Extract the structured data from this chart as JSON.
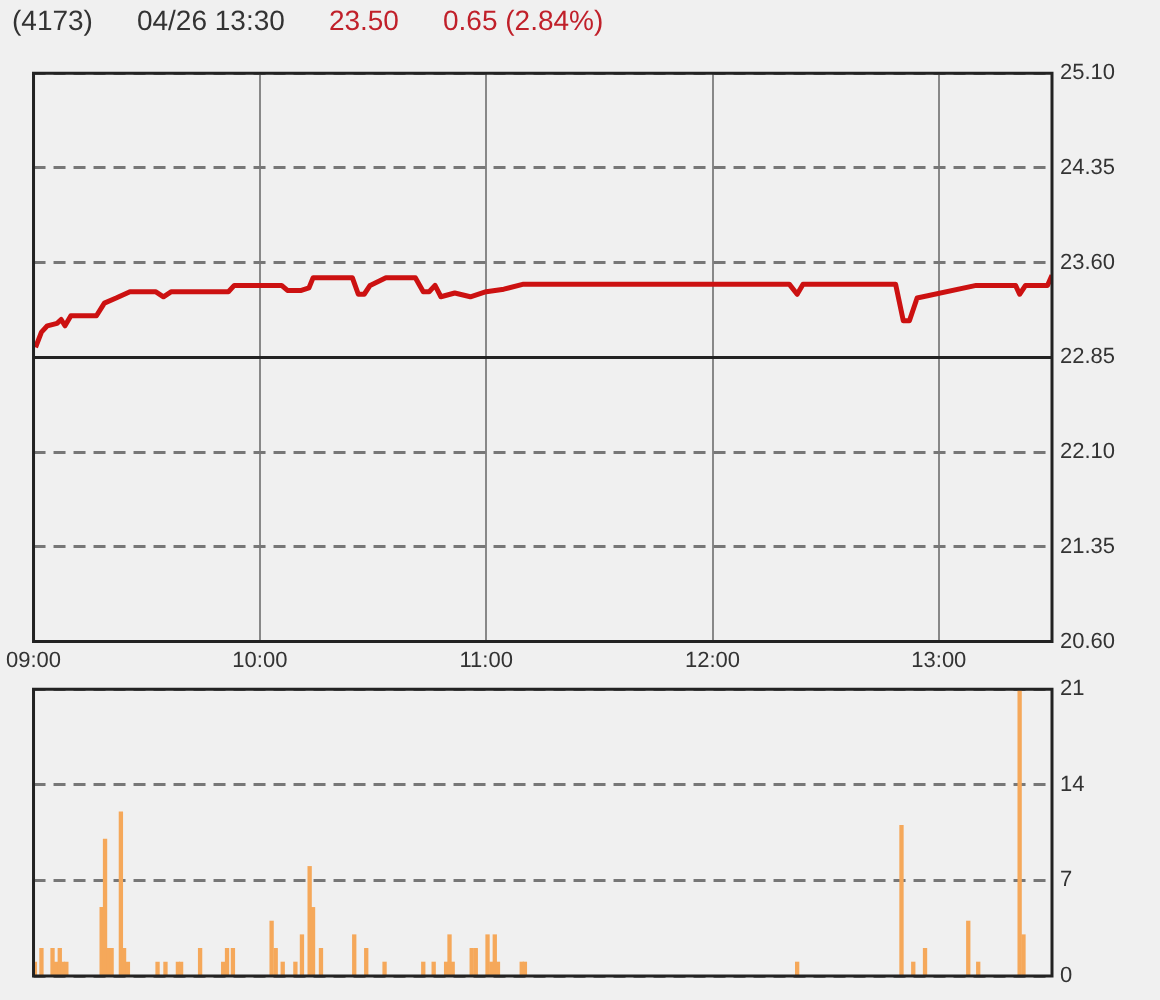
{
  "chart_data": [
    {
      "type": "line",
      "title": "(4173)",
      "subtitle": "04/26 13:30",
      "annotations": [
        "23.50",
        "0.65 (2.84%)"
      ],
      "color": "#cc1111",
      "line_style": "solid",
      "marker": "none",
      "grid": true,
      "legend": false,
      "x": [
        9.009,
        9.035,
        9.061,
        9.104,
        9.122,
        9.139,
        9.165,
        9.278,
        9.313,
        9.365,
        9.426,
        9.539,
        9.574,
        9.609,
        9.861,
        9.887,
        10.096,
        10.122,
        10.183,
        10.217,
        10.235,
        10.409,
        10.435,
        10.461,
        10.487,
        10.557,
        10.687,
        10.722,
        10.748,
        10.774,
        10.8,
        10.861,
        10.93,
        11.0,
        11.078,
        11.165,
        12.339,
        12.374,
        12.4,
        12.809,
        12.843,
        12.87,
        12.904,
        13.165,
        13.339,
        13.357,
        13.383,
        13.48,
        13.5
      ],
      "values": [
        22.93,
        23.05,
        23.1,
        23.12,
        23.15,
        23.1,
        23.18,
        23.18,
        23.28,
        23.32,
        23.37,
        23.37,
        23.33,
        23.37,
        23.37,
        23.42,
        23.42,
        23.38,
        23.38,
        23.4,
        23.48,
        23.48,
        23.35,
        23.35,
        23.42,
        23.48,
        23.48,
        23.37,
        23.37,
        23.42,
        23.33,
        23.36,
        23.33,
        23.37,
        23.39,
        23.43,
        23.43,
        23.35,
        23.43,
        23.43,
        23.14,
        23.14,
        23.32,
        23.42,
        23.42,
        23.35,
        23.42,
        23.42,
        23.5
      ],
      "xlim": [
        9,
        13.5
      ],
      "xticks": [
        {
          "value": 9,
          "label": "09:00"
        },
        {
          "value": 10,
          "label": "10:00"
        },
        {
          "value": 11,
          "label": "11:00"
        },
        {
          "value": 12,
          "label": "12:00"
        },
        {
          "value": 13,
          "label": "13:00"
        }
      ],
      "ylim": [
        20.6,
        25.1
      ],
      "yticks": [
        {
          "value": 20.6,
          "label": "20.60"
        },
        {
          "value": 21.35,
          "label": "21.35"
        },
        {
          "value": 22.1,
          "label": "22.10"
        },
        {
          "value": 22.85,
          "label": "22.85"
        },
        {
          "value": 23.6,
          "label": "23.60"
        },
        {
          "value": 24.35,
          "label": "24.35"
        },
        {
          "value": 25.1,
          "label": "25.10"
        }
      ],
      "ref_lines": [
        {
          "axis": "y",
          "value": 22.85,
          "color": "#222222",
          "line_style": "solid"
        }
      ]
    },
    {
      "type": "bar",
      "color": "#f5a85a",
      "grid": "y",
      "legend": false,
      "tick_labels": "y",
      "x": [
        9.006,
        9.035,
        9.084,
        9.099,
        9.116,
        9.13,
        9.145,
        9.301,
        9.316,
        9.33,
        9.345,
        9.386,
        9.4,
        9.417,
        9.548,
        9.583,
        9.638,
        9.652,
        9.736,
        9.838,
        9.855,
        9.881,
        10.052,
        10.07,
        10.101,
        10.157,
        10.186,
        10.22,
        10.235,
        10.27,
        10.417,
        10.47,
        10.551,
        10.722,
        10.768,
        10.823,
        10.838,
        10.852,
        10.936,
        10.954,
        11.006,
        11.023,
        11.038,
        11.052,
        11.157,
        11.171,
        12.374,
        12.835,
        12.887,
        12.939,
        13.13,
        13.174,
        13.357,
        13.374
      ],
      "values": [
        1,
        2,
        2,
        1,
        2,
        1,
        1,
        5,
        10,
        2,
        2,
        12,
        2,
        1,
        1,
        1,
        1,
        1,
        2,
        1,
        2,
        2,
        4,
        2,
        1,
        1,
        3,
        8,
        5,
        2,
        3,
        2,
        1,
        1,
        1,
        1,
        3,
        1,
        2,
        2,
        3,
        1,
        3,
        1,
        1,
        1,
        1,
        11,
        1,
        2,
        4,
        1,
        21,
        3
      ],
      "xlim": [
        9,
        13.5
      ],
      "ylim": [
        0,
        21
      ],
      "yticks": [
        0,
        7,
        14,
        21
      ]
    }
  ]
}
